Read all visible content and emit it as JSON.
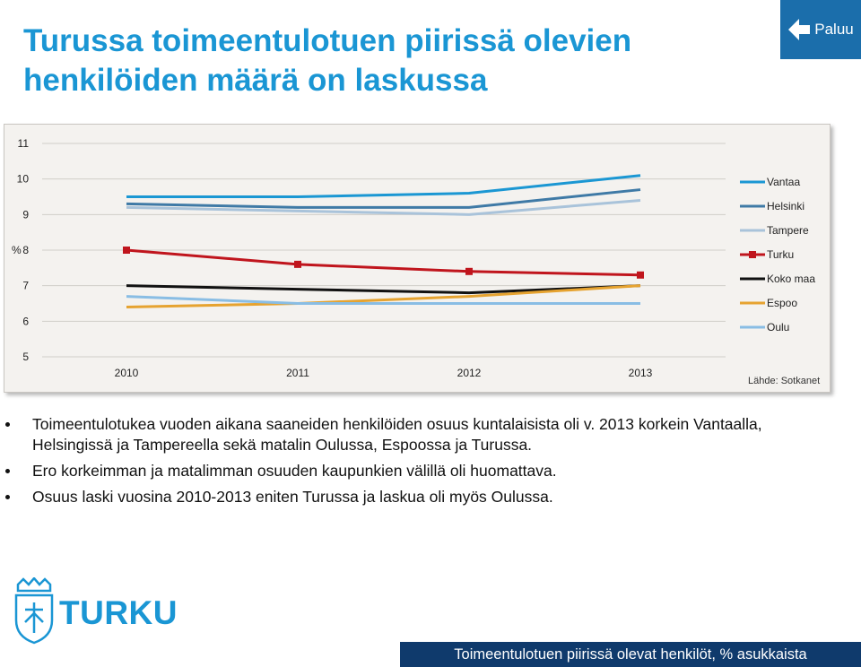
{
  "title": {
    "line1": "Turussa toimeentulotuen piirissä olevien",
    "line2": "henkilöiden määrä on laskussa"
  },
  "back_button": {
    "label": "Paluu",
    "icon": "arrow-left-icon"
  },
  "chart_data": {
    "type": "line",
    "x": [
      "2010",
      "2011",
      "2012",
      "2013"
    ],
    "ylabel": "%",
    "ylim": [
      5,
      11
    ],
    "yticks": [
      5,
      6,
      7,
      8,
      9,
      10,
      11
    ],
    "grid": true,
    "legend_position": "right",
    "series": [
      {
        "name": "Vantaa",
        "color": "#1b97d3",
        "values": [
          9.5,
          9.5,
          9.6,
          10.1
        ]
      },
      {
        "name": "Helsinki",
        "color": "#3f7aa6",
        "values": [
          9.3,
          9.2,
          9.2,
          9.7
        ]
      },
      {
        "name": "Tampere",
        "color": "#a9c3da",
        "values": [
          9.2,
          9.1,
          9.0,
          9.4
        ]
      },
      {
        "name": "Turku",
        "color": "#c0151d",
        "marker": "square",
        "values": [
          8.0,
          7.6,
          7.4,
          7.3
        ]
      },
      {
        "name": "Koko maa",
        "color": "#111111",
        "values": [
          7.0,
          6.9,
          6.8,
          7.0
        ]
      },
      {
        "name": "Espoo",
        "color": "#e6a330",
        "values": [
          6.4,
          6.5,
          6.7,
          7.0
        ]
      },
      {
        "name": "Oulu",
        "color": "#89bde4",
        "values": [
          6.7,
          6.5,
          6.5,
          6.5
        ]
      }
    ],
    "source": "Lähde: Sotkanet"
  },
  "bullets": [
    "Toimeentulotukea vuoden aikana saaneiden henkilöiden osuus kuntalaisista oli v. 2013 korkein Vantaalla, Helsingissä ja Tampereella sekä matalin Oulussa, Espoossa ja Turussa.",
    "Ero korkeimman ja matalimman osuuden kaupunkien välillä oli huomattava.",
    "Osuus laski vuosina 2010-2013 eniten Turussa ja laskua oli myös Oulussa."
  ],
  "logo": {
    "text": "TURKU",
    "icon": "turku-coat-of-arms-icon",
    "color": "#1a96d4"
  },
  "footer": {
    "text": "Toimeentulotuen piirissä olevat henkilöt, % asukkaista"
  }
}
